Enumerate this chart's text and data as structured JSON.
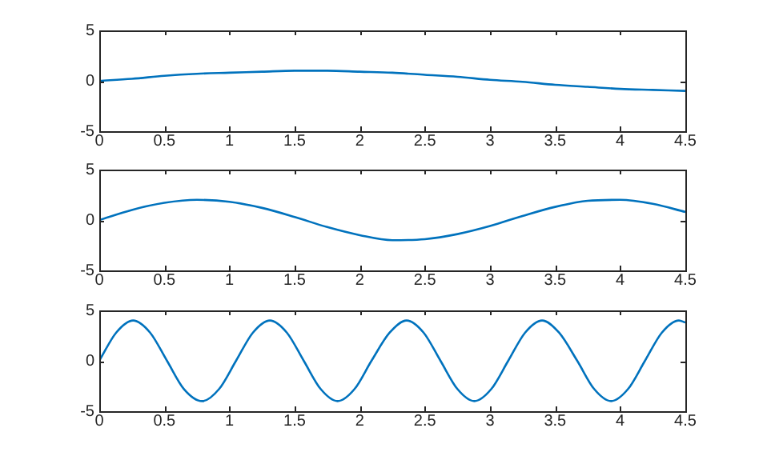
{
  "chart_data": [
    {
      "type": "line",
      "x": [
        0,
        0.25,
        0.5,
        0.75,
        1,
        1.25,
        1.5,
        1.75,
        2,
        2.25,
        2.5,
        2.75,
        3,
        3.25,
        3.5,
        3.75,
        4,
        4.25,
        4.5
      ],
      "series": [
        {
          "color": "#0072bd",
          "values": [
            0,
            0.2,
            0.5,
            0.7,
            0.8,
            0.9,
            1.0,
            1.0,
            0.9,
            0.8,
            0.6,
            0.4,
            0.1,
            -0.1,
            -0.4,
            -0.6,
            -0.8,
            -0.9,
            -1.0
          ]
        }
      ],
      "xlim": [
        0,
        4.5
      ],
      "ylim": [
        -5,
        5
      ],
      "xticks": [
        0,
        0.5,
        1,
        1.5,
        2,
        2.5,
        3,
        3.5,
        4,
        4.5
      ],
      "yticks": [
        -5,
        0,
        5
      ],
      "marker": "none",
      "line_style": "solid"
    },
    {
      "type": "line",
      "x": [
        0,
        0.25,
        0.5,
        0.75,
        1,
        1.25,
        1.5,
        1.75,
        2,
        2.25,
        2.5,
        2.75,
        3,
        3.25,
        3.5,
        3.75,
        4,
        4.25,
        4.5
      ],
      "series": [
        {
          "color": "#0072bd",
          "values": [
            0,
            1.0,
            1.7,
            2.0,
            1.8,
            1.2,
            0.3,
            -0.7,
            -1.5,
            -2.0,
            -1.9,
            -1.4,
            -0.6,
            0.4,
            1.3,
            1.9,
            2.0,
            1.6,
            0.8
          ]
        }
      ],
      "xlim": [
        0,
        4.5
      ],
      "ylim": [
        -5,
        5
      ],
      "xticks": [
        0,
        0.5,
        1,
        1.5,
        2,
        2.5,
        3,
        3.5,
        4,
        4.5
      ],
      "yticks": [
        -5,
        0,
        5
      ],
      "marker": "none",
      "line_style": "solid"
    },
    {
      "type": "line",
      "x": [
        0,
        0.13,
        0.26,
        0.39,
        0.52,
        0.65,
        0.79,
        0.92,
        1.05,
        1.18,
        1.31,
        1.44,
        1.57,
        1.7,
        1.83,
        1.96,
        2.09,
        2.23,
        2.36,
        2.49,
        2.62,
        2.75,
        2.88,
        3.01,
        3.14,
        3.27,
        3.4,
        3.53,
        3.67,
        3.8,
        3.93,
        4.06,
        4.19,
        4.32,
        4.45,
        4.5
      ],
      "series": [
        {
          "color": "#0072bd",
          "values": [
            0,
            2.8,
            4,
            2.8,
            0,
            -2.8,
            -4,
            -2.8,
            0,
            2.8,
            4,
            2.8,
            0,
            -2.8,
            -4,
            -2.8,
            0,
            2.8,
            4,
            2.8,
            0,
            -2.8,
            -4,
            -2.8,
            0,
            2.8,
            4,
            2.8,
            0,
            -2.8,
            -4,
            -2.8,
            0,
            2.8,
            4,
            3.8
          ]
        }
      ],
      "xlim": [
        0,
        4.5
      ],
      "ylim": [
        -5,
        5
      ],
      "xticks": [
        0,
        0.5,
        1,
        1.5,
        2,
        2.5,
        3,
        3.5,
        4,
        4.5
      ],
      "yticks": [
        -5,
        0,
        5
      ],
      "marker": "none",
      "line_style": "solid"
    }
  ]
}
